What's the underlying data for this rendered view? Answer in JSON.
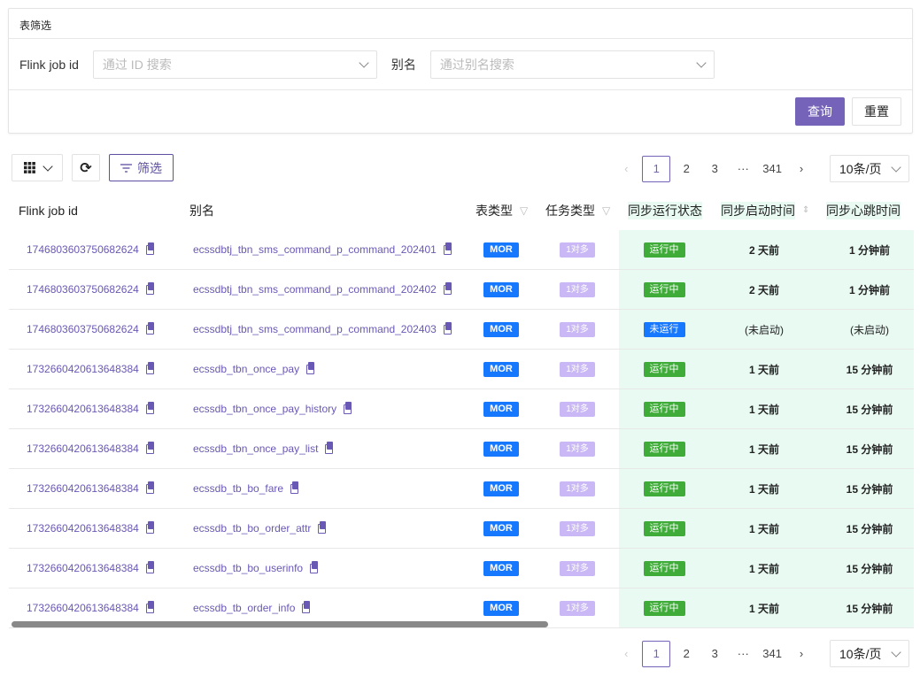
{
  "filter_card": {
    "title": "表筛选",
    "job_id_label": "Flink job id",
    "job_id_placeholder": "通过 ID 搜索",
    "alias_label": "别名",
    "alias_placeholder": "通过别名搜索",
    "query_label": "查询",
    "reset_label": "重置"
  },
  "toolbar": {
    "filter_label": "筛选"
  },
  "pagination": {
    "pages": [
      "1",
      "2",
      "3",
      "···",
      "341"
    ],
    "current": "1",
    "page_size": "10条/页"
  },
  "colors": {
    "primary": "#7563b9",
    "mor": "#1677ff",
    "task_type": "#c9b8f5",
    "running": "#3fac3a",
    "not_running": "#1677ff",
    "status_bg": "#e8faf2"
  },
  "table": {
    "headers": [
      "Flink job id",
      "别名",
      "表类型",
      "任务类型",
      "同步运行状态",
      "同步启动时间",
      "同步心跳时间"
    ],
    "rows": [
      {
        "job_id": "1746803603750682624",
        "alias": "ecssdbtj_tbn_sms_command_p_command_202401",
        "table_type": "MOR",
        "task_type": "1对多",
        "status": "运行中",
        "start": "2 天前",
        "heartbeat": "1 分钟前"
      },
      {
        "job_id": "1746803603750682624",
        "alias": "ecssdbtj_tbn_sms_command_p_command_202402",
        "table_type": "MOR",
        "task_type": "1对多",
        "status": "运行中",
        "start": "2 天前",
        "heartbeat": "1 分钟前"
      },
      {
        "job_id": "1746803603750682624",
        "alias": "ecssdbtj_tbn_sms_command_p_command_202403",
        "table_type": "MOR",
        "task_type": "1对多",
        "status": "未运行",
        "start": "(未启动)",
        "heartbeat": "(未启动)"
      },
      {
        "job_id": "1732660420613648384",
        "alias": "ecssdb_tbn_once_pay",
        "table_type": "MOR",
        "task_type": "1对多",
        "status": "运行中",
        "start": "1 天前",
        "heartbeat": "15 分钟前"
      },
      {
        "job_id": "1732660420613648384",
        "alias": "ecssdb_tbn_once_pay_history",
        "table_type": "MOR",
        "task_type": "1对多",
        "status": "运行中",
        "start": "1 天前",
        "heartbeat": "15 分钟前"
      },
      {
        "job_id": "1732660420613648384",
        "alias": "ecssdb_tbn_once_pay_list",
        "table_type": "MOR",
        "task_type": "1对多",
        "status": "运行中",
        "start": "1 天前",
        "heartbeat": "15 分钟前"
      },
      {
        "job_id": "1732660420613648384",
        "alias": "ecssdb_tb_bo_fare",
        "table_type": "MOR",
        "task_type": "1对多",
        "status": "运行中",
        "start": "1 天前",
        "heartbeat": "15 分钟前"
      },
      {
        "job_id": "1732660420613648384",
        "alias": "ecssdb_tb_bo_order_attr",
        "table_type": "MOR",
        "task_type": "1对多",
        "status": "运行中",
        "start": "1 天前",
        "heartbeat": "15 分钟前"
      },
      {
        "job_id": "1732660420613648384",
        "alias": "ecssdb_tb_bo_userinfo",
        "table_type": "MOR",
        "task_type": "1对多",
        "status": "运行中",
        "start": "1 天前",
        "heartbeat": "15 分钟前"
      },
      {
        "job_id": "1732660420613648384",
        "alias": "ecssdb_tb_order_info",
        "table_type": "MOR",
        "task_type": "1对多",
        "status": "运行中",
        "start": "1 天前",
        "heartbeat": "15 分钟前"
      }
    ]
  }
}
